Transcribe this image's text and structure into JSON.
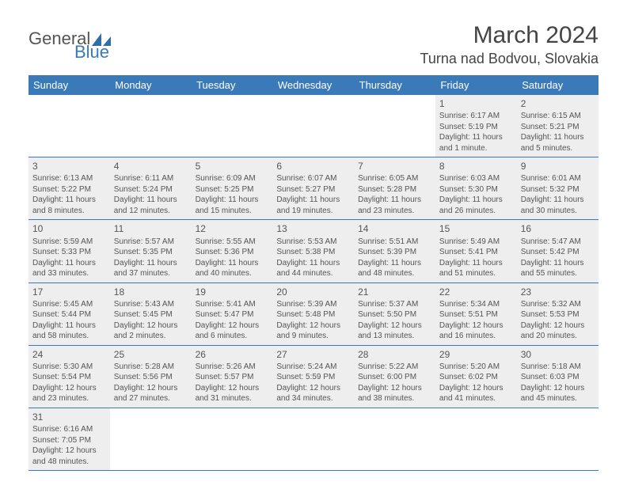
{
  "logo": {
    "part1": "General",
    "part2": "Blue",
    "shape_color": "#2f6fa8"
  },
  "title": {
    "month_year": "March 2024",
    "location": "Turna nad Bodvou, Slovakia"
  },
  "colors": {
    "header_bg": "#3a7ab8",
    "header_text": "#ffffff",
    "cell_bg": "#eeeeee",
    "border": "#3a7ab8",
    "text": "#555555"
  },
  "day_headers": [
    "Sunday",
    "Monday",
    "Tuesday",
    "Wednesday",
    "Thursday",
    "Friday",
    "Saturday"
  ],
  "weeks": [
    [
      null,
      null,
      null,
      null,
      null,
      {
        "d": "1",
        "sr": "Sunrise: 6:17 AM",
        "ss": "Sunset: 5:19 PM",
        "dl1": "Daylight: 11 hours",
        "dl2": "and 1 minute."
      },
      {
        "d": "2",
        "sr": "Sunrise: 6:15 AM",
        "ss": "Sunset: 5:21 PM",
        "dl1": "Daylight: 11 hours",
        "dl2": "and 5 minutes."
      }
    ],
    [
      {
        "d": "3",
        "sr": "Sunrise: 6:13 AM",
        "ss": "Sunset: 5:22 PM",
        "dl1": "Daylight: 11 hours",
        "dl2": "and 8 minutes."
      },
      {
        "d": "4",
        "sr": "Sunrise: 6:11 AM",
        "ss": "Sunset: 5:24 PM",
        "dl1": "Daylight: 11 hours",
        "dl2": "and 12 minutes."
      },
      {
        "d": "5",
        "sr": "Sunrise: 6:09 AM",
        "ss": "Sunset: 5:25 PM",
        "dl1": "Daylight: 11 hours",
        "dl2": "and 15 minutes."
      },
      {
        "d": "6",
        "sr": "Sunrise: 6:07 AM",
        "ss": "Sunset: 5:27 PM",
        "dl1": "Daylight: 11 hours",
        "dl2": "and 19 minutes."
      },
      {
        "d": "7",
        "sr": "Sunrise: 6:05 AM",
        "ss": "Sunset: 5:28 PM",
        "dl1": "Daylight: 11 hours",
        "dl2": "and 23 minutes."
      },
      {
        "d": "8",
        "sr": "Sunrise: 6:03 AM",
        "ss": "Sunset: 5:30 PM",
        "dl1": "Daylight: 11 hours",
        "dl2": "and 26 minutes."
      },
      {
        "d": "9",
        "sr": "Sunrise: 6:01 AM",
        "ss": "Sunset: 5:32 PM",
        "dl1": "Daylight: 11 hours",
        "dl2": "and 30 minutes."
      }
    ],
    [
      {
        "d": "10",
        "sr": "Sunrise: 5:59 AM",
        "ss": "Sunset: 5:33 PM",
        "dl1": "Daylight: 11 hours",
        "dl2": "and 33 minutes."
      },
      {
        "d": "11",
        "sr": "Sunrise: 5:57 AM",
        "ss": "Sunset: 5:35 PM",
        "dl1": "Daylight: 11 hours",
        "dl2": "and 37 minutes."
      },
      {
        "d": "12",
        "sr": "Sunrise: 5:55 AM",
        "ss": "Sunset: 5:36 PM",
        "dl1": "Daylight: 11 hours",
        "dl2": "and 40 minutes."
      },
      {
        "d": "13",
        "sr": "Sunrise: 5:53 AM",
        "ss": "Sunset: 5:38 PM",
        "dl1": "Daylight: 11 hours",
        "dl2": "and 44 minutes."
      },
      {
        "d": "14",
        "sr": "Sunrise: 5:51 AM",
        "ss": "Sunset: 5:39 PM",
        "dl1": "Daylight: 11 hours",
        "dl2": "and 48 minutes."
      },
      {
        "d": "15",
        "sr": "Sunrise: 5:49 AM",
        "ss": "Sunset: 5:41 PM",
        "dl1": "Daylight: 11 hours",
        "dl2": "and 51 minutes."
      },
      {
        "d": "16",
        "sr": "Sunrise: 5:47 AM",
        "ss": "Sunset: 5:42 PM",
        "dl1": "Daylight: 11 hours",
        "dl2": "and 55 minutes."
      }
    ],
    [
      {
        "d": "17",
        "sr": "Sunrise: 5:45 AM",
        "ss": "Sunset: 5:44 PM",
        "dl1": "Daylight: 11 hours",
        "dl2": "and 58 minutes."
      },
      {
        "d": "18",
        "sr": "Sunrise: 5:43 AM",
        "ss": "Sunset: 5:45 PM",
        "dl1": "Daylight: 12 hours",
        "dl2": "and 2 minutes."
      },
      {
        "d": "19",
        "sr": "Sunrise: 5:41 AM",
        "ss": "Sunset: 5:47 PM",
        "dl1": "Daylight: 12 hours",
        "dl2": "and 6 minutes."
      },
      {
        "d": "20",
        "sr": "Sunrise: 5:39 AM",
        "ss": "Sunset: 5:48 PM",
        "dl1": "Daylight: 12 hours",
        "dl2": "and 9 minutes."
      },
      {
        "d": "21",
        "sr": "Sunrise: 5:37 AM",
        "ss": "Sunset: 5:50 PM",
        "dl1": "Daylight: 12 hours",
        "dl2": "and 13 minutes."
      },
      {
        "d": "22",
        "sr": "Sunrise: 5:34 AM",
        "ss": "Sunset: 5:51 PM",
        "dl1": "Daylight: 12 hours",
        "dl2": "and 16 minutes."
      },
      {
        "d": "23",
        "sr": "Sunrise: 5:32 AM",
        "ss": "Sunset: 5:53 PM",
        "dl1": "Daylight: 12 hours",
        "dl2": "and 20 minutes."
      }
    ],
    [
      {
        "d": "24",
        "sr": "Sunrise: 5:30 AM",
        "ss": "Sunset: 5:54 PM",
        "dl1": "Daylight: 12 hours",
        "dl2": "and 23 minutes."
      },
      {
        "d": "25",
        "sr": "Sunrise: 5:28 AM",
        "ss": "Sunset: 5:56 PM",
        "dl1": "Daylight: 12 hours",
        "dl2": "and 27 minutes."
      },
      {
        "d": "26",
        "sr": "Sunrise: 5:26 AM",
        "ss": "Sunset: 5:57 PM",
        "dl1": "Daylight: 12 hours",
        "dl2": "and 31 minutes."
      },
      {
        "d": "27",
        "sr": "Sunrise: 5:24 AM",
        "ss": "Sunset: 5:59 PM",
        "dl1": "Daylight: 12 hours",
        "dl2": "and 34 minutes."
      },
      {
        "d": "28",
        "sr": "Sunrise: 5:22 AM",
        "ss": "Sunset: 6:00 PM",
        "dl1": "Daylight: 12 hours",
        "dl2": "and 38 minutes."
      },
      {
        "d": "29",
        "sr": "Sunrise: 5:20 AM",
        "ss": "Sunset: 6:02 PM",
        "dl1": "Daylight: 12 hours",
        "dl2": "and 41 minutes."
      },
      {
        "d": "30",
        "sr": "Sunrise: 5:18 AM",
        "ss": "Sunset: 6:03 PM",
        "dl1": "Daylight: 12 hours",
        "dl2": "and 45 minutes."
      }
    ],
    [
      {
        "d": "31",
        "sr": "Sunrise: 6:16 AM",
        "ss": "Sunset: 7:05 PM",
        "dl1": "Daylight: 12 hours",
        "dl2": "and 48 minutes."
      },
      null,
      null,
      null,
      null,
      null,
      null
    ]
  ]
}
